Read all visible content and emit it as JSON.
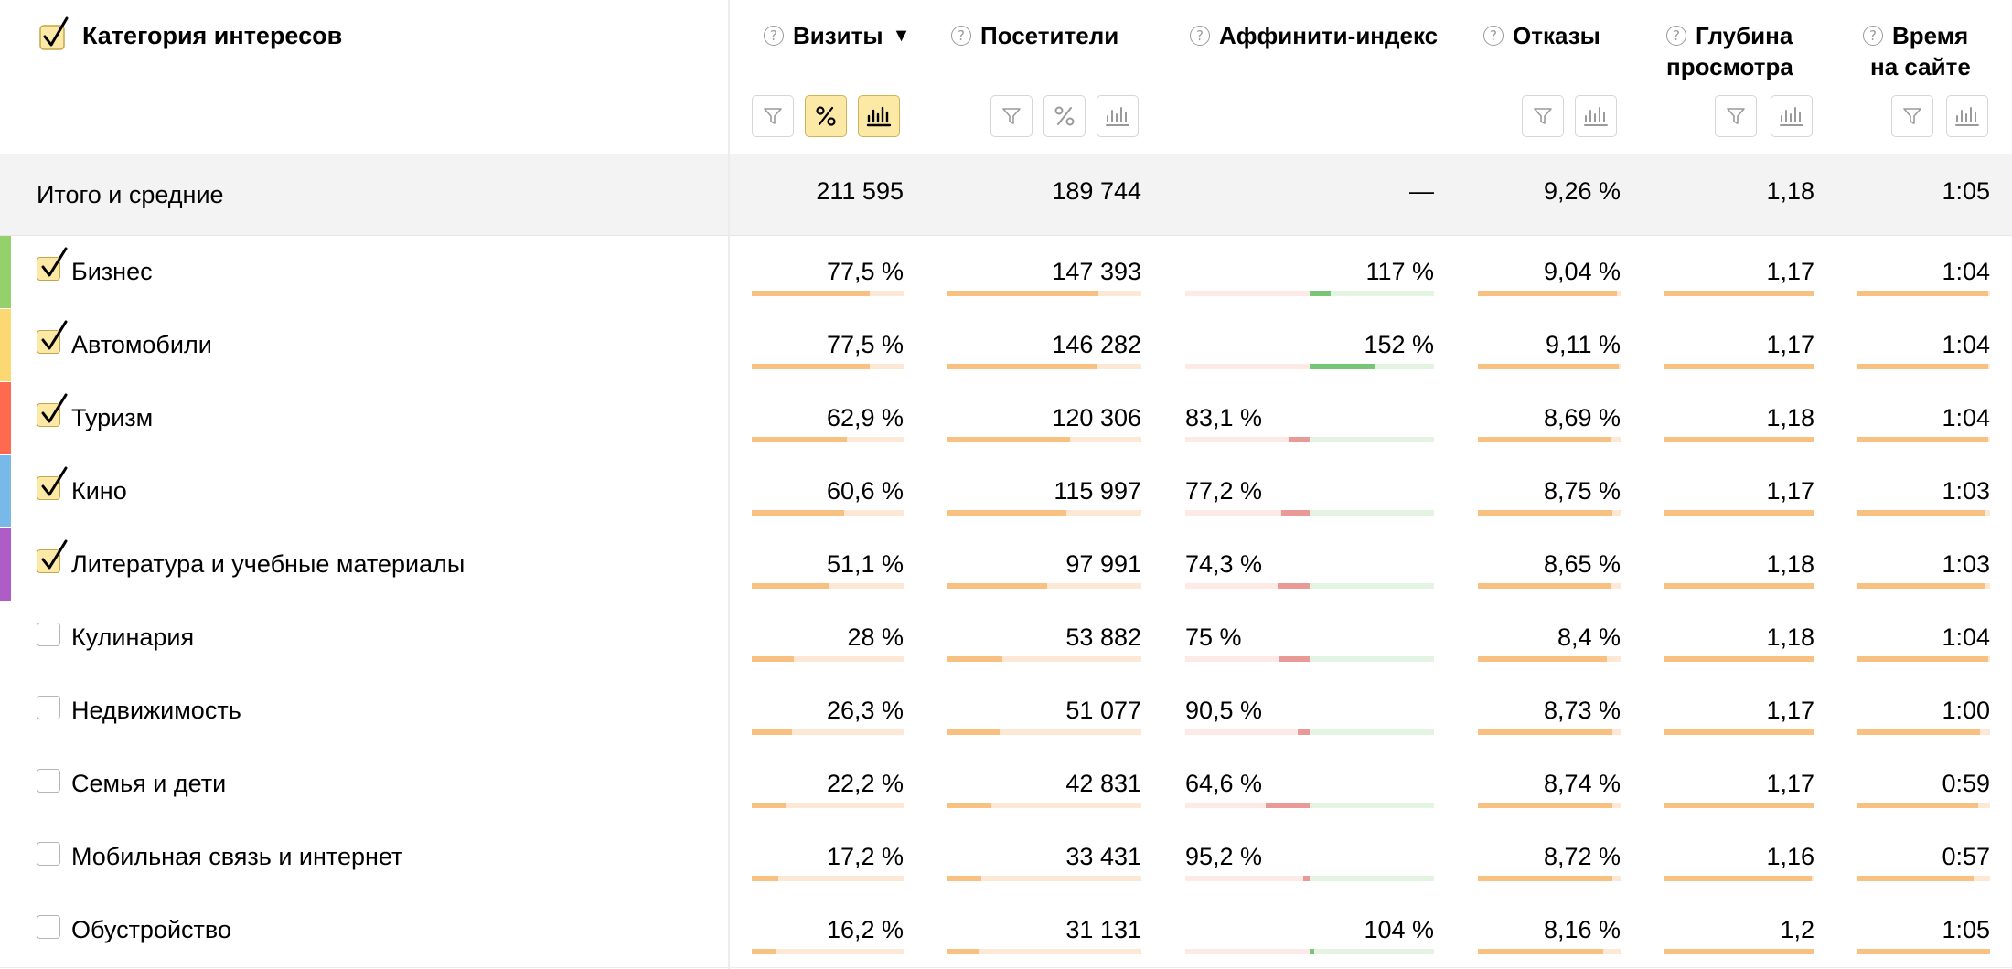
{
  "header": {
    "title": "Категория интересов",
    "columns": {
      "visits": "Визиты",
      "visitors": "Посетители",
      "affinity": "Аффинити-индекс",
      "bounce": "Отказы",
      "depth_1": "Глубина",
      "depth_2": "просмотра",
      "time_1": "Время",
      "time_2": "на сайте"
    },
    "help_glyph": "?",
    "sort_glyph": "▼"
  },
  "totals": {
    "label": "Итого и средние",
    "visits": "211 595",
    "visitors": "189 744",
    "affinity": "—",
    "bounce": "9,26 %",
    "depth": "1,18",
    "time": "1:05"
  },
  "colors": {
    "accent": "#fce9a6",
    "bar_fill": "#f8c182",
    "bar_track": "#fde8d6",
    "affinity_positive": "#79c577",
    "affinity_negative": "#e99a96"
  },
  "rows": [
    {
      "label": "Бизнес",
      "checked": true,
      "stripe": "#94d06b",
      "visits": "77,5 %",
      "visits_share": 0.775,
      "visitors": "147 393",
      "visitors_share": 0.777,
      "affinity": "117 %",
      "affinity_value": 117,
      "bounce": "9,04 %",
      "bounce_share": 0.976,
      "depth": "1,17",
      "depth_share": 0.992,
      "time": "1:04",
      "time_share": 0.985
    },
    {
      "label": "Автомобили",
      "checked": true,
      "stripe": "#fcd872",
      "visits": "77,5 %",
      "visits_share": 0.775,
      "visitors": "146 282",
      "visitors_share": 0.771,
      "affinity": "152 %",
      "affinity_value": 152,
      "bounce": "9,11 %",
      "bounce_share": 0.984,
      "depth": "1,17",
      "depth_share": 0.992,
      "time": "1:04",
      "time_share": 0.985
    },
    {
      "label": "Туризм",
      "checked": true,
      "stripe": "#fd6a50",
      "visits": "62,9 %",
      "visits_share": 0.629,
      "visitors": "120 306",
      "visitors_share": 0.634,
      "affinity": "83,1 %",
      "affinity_value": 83.1,
      "bounce": "8,69 %",
      "bounce_share": 0.938,
      "depth": "1,18",
      "depth_share": 1.0,
      "time": "1:04",
      "time_share": 0.985
    },
    {
      "label": "Кино",
      "checked": true,
      "stripe": "#79b9ea",
      "visits": "60,6 %",
      "visits_share": 0.606,
      "visitors": "115 997",
      "visitors_share": 0.611,
      "affinity": "77,2 %",
      "affinity_value": 77.2,
      "bounce": "8,75 %",
      "bounce_share": 0.945,
      "depth": "1,17",
      "depth_share": 0.992,
      "time": "1:03",
      "time_share": 0.969
    },
    {
      "label": "Литература и учебные материалы",
      "checked": true,
      "stripe": "#b05cc6",
      "visits": "51,1 %",
      "visits_share": 0.511,
      "visitors": "97 991",
      "visitors_share": 0.516,
      "affinity": "74,3 %",
      "affinity_value": 74.3,
      "bounce": "8,65 %",
      "bounce_share": 0.934,
      "depth": "1,18",
      "depth_share": 1.0,
      "time": "1:03",
      "time_share": 0.969
    },
    {
      "label": "Кулинария",
      "checked": false,
      "stripe": "",
      "visits": "28 %",
      "visits_share": 0.28,
      "visitors": "53 882",
      "visitors_share": 0.284,
      "affinity": "75 %",
      "affinity_value": 75,
      "bounce": "8,4 %",
      "bounce_share": 0.907,
      "depth": "1,18",
      "depth_share": 1.0,
      "time": "1:04",
      "time_share": 0.985
    },
    {
      "label": "Недвижимость",
      "checked": false,
      "stripe": "",
      "visits": "26,3 %",
      "visits_share": 0.263,
      "visitors": "51 077",
      "visitors_share": 0.269,
      "affinity": "90,5 %",
      "affinity_value": 90.5,
      "bounce": "8,73 %",
      "bounce_share": 0.943,
      "depth": "1,17",
      "depth_share": 0.992,
      "time": "1:00",
      "time_share": 0.923
    },
    {
      "label": "Семья и дети",
      "checked": false,
      "stripe": "",
      "visits": "22,2 %",
      "visits_share": 0.222,
      "visitors": "42 831",
      "visitors_share": 0.226,
      "affinity": "64,6 %",
      "affinity_value": 64.6,
      "bounce": "8,74 %",
      "bounce_share": 0.944,
      "depth": "1,17",
      "depth_share": 0.992,
      "time": "0:59",
      "time_share": 0.908
    },
    {
      "label": "Мобильная связь и интернет",
      "checked": false,
      "stripe": "",
      "visits": "17,2 %",
      "visits_share": 0.172,
      "visitors": "33 431",
      "visitors_share": 0.176,
      "affinity": "95,2 %",
      "affinity_value": 95.2,
      "bounce": "8,72 %",
      "bounce_share": 0.942,
      "depth": "1,16",
      "depth_share": 0.983,
      "time": "0:57",
      "time_share": 0.877
    },
    {
      "label": "Обустройство",
      "checked": false,
      "stripe": "",
      "visits": "16,2 %",
      "visits_share": 0.162,
      "visitors": "31 131",
      "visitors_share": 0.164,
      "affinity": "104 %",
      "affinity_value": 104,
      "bounce": "8,16 %",
      "bounce_share": 0.881,
      "depth": "1,2",
      "depth_share": 1.0,
      "time": "1:05",
      "time_share": 1.0
    }
  ]
}
